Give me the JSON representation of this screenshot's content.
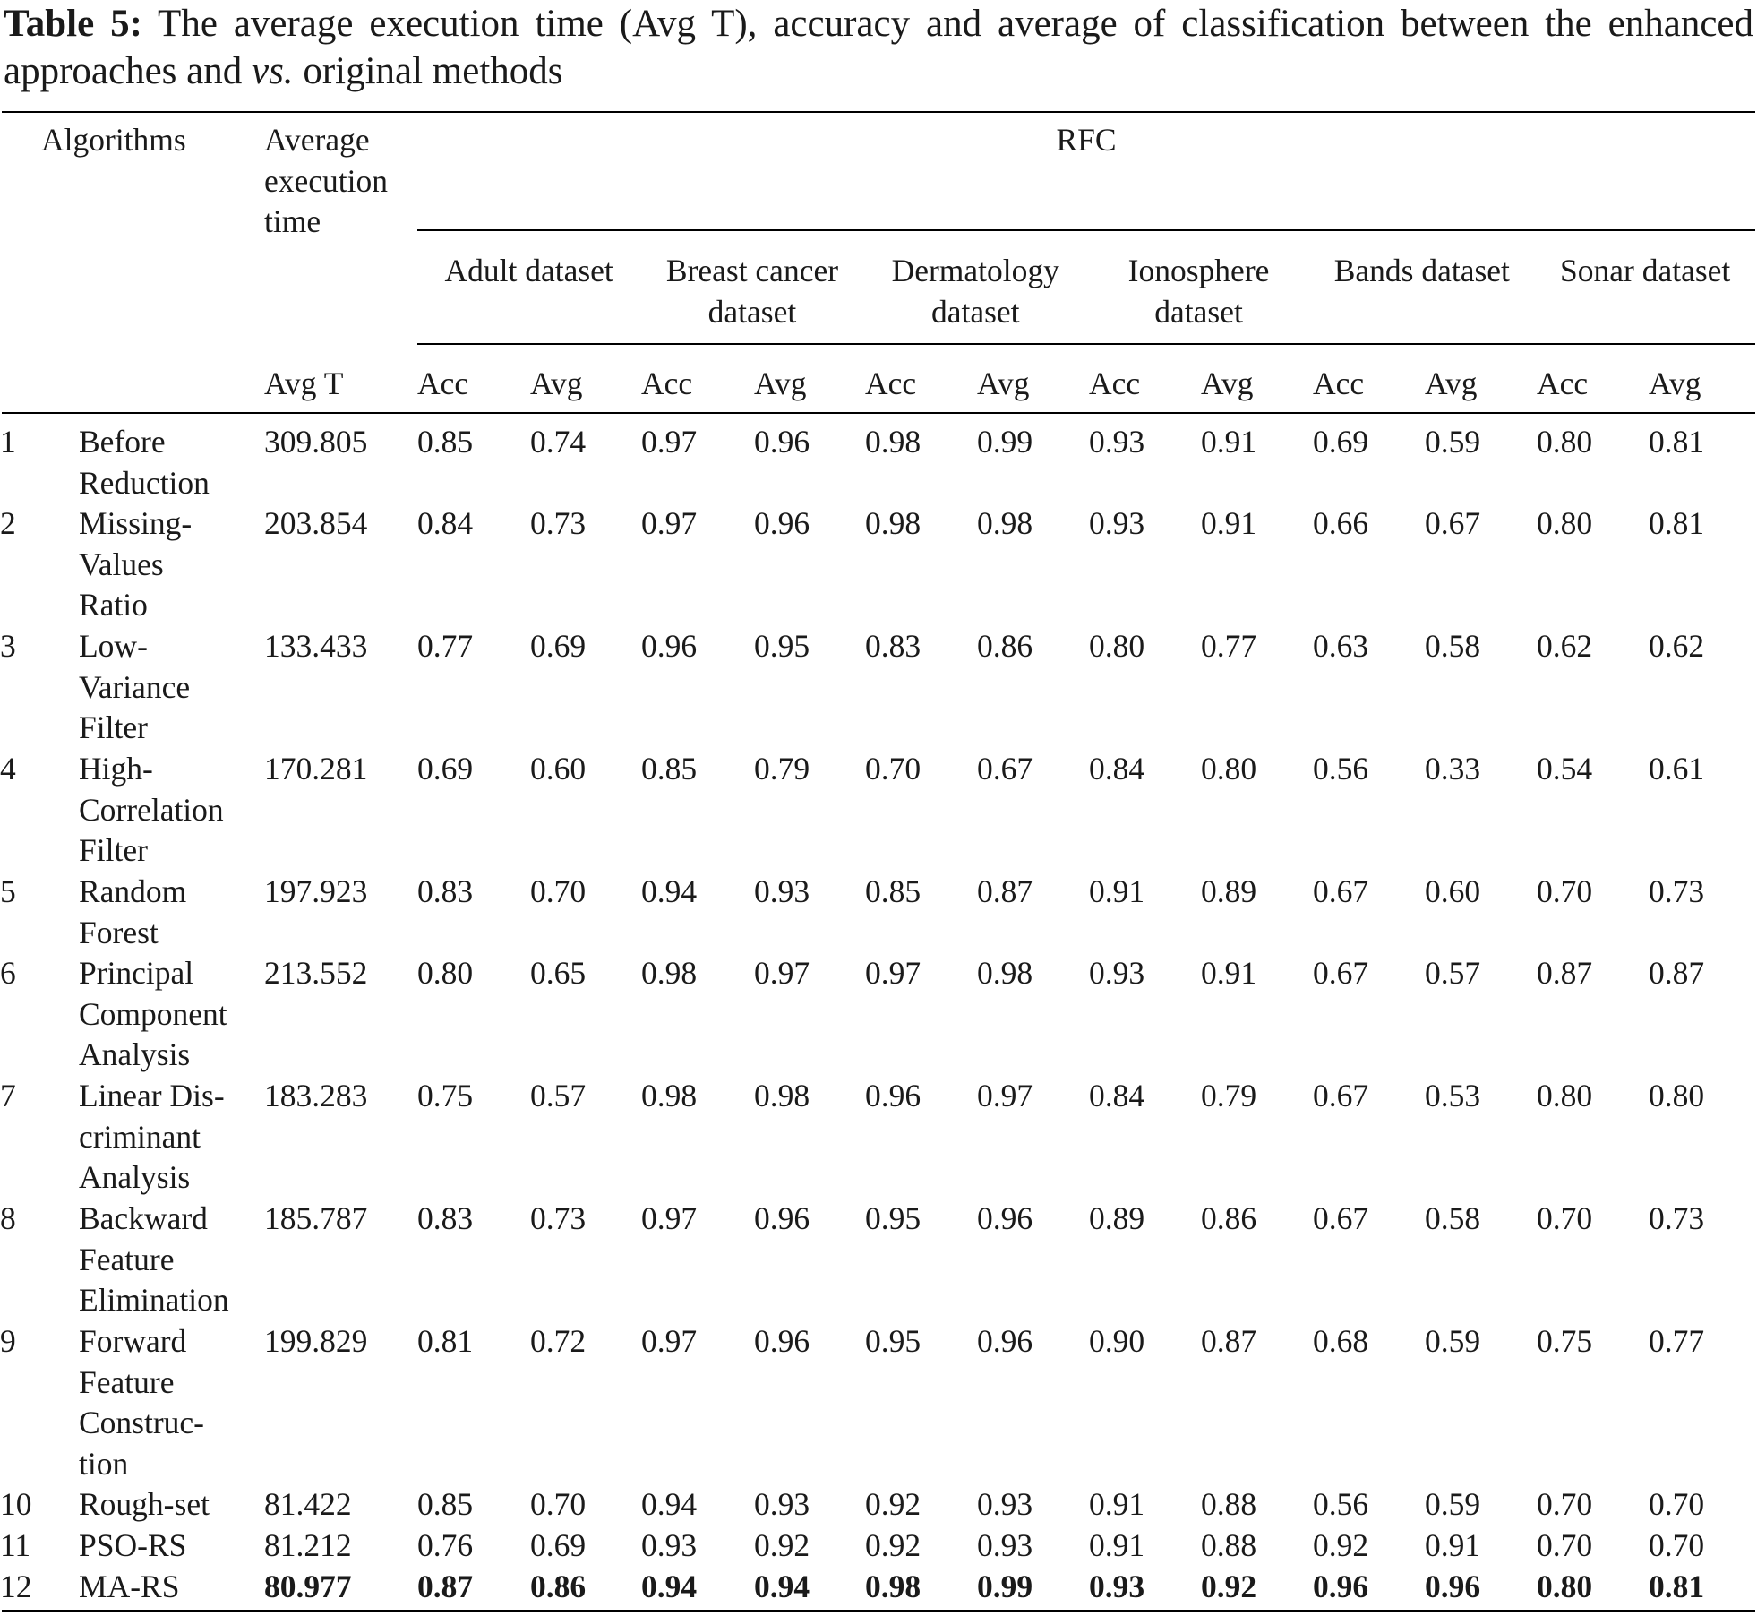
{
  "caption": {
    "label": "Table 5:",
    "text_before": " The average execution time (Avg T), accuracy and average of classification between the enhanced approaches and ",
    "italic": "vs.",
    "text_after": " original methods"
  },
  "header": {
    "algorithms": "Algorithms",
    "avg_exec_time": [
      "Average",
      "execution",
      "time"
    ],
    "rfc": "RFC",
    "datasets": [
      [
        "Adult dataset"
      ],
      [
        "Breast cancer",
        "dataset"
      ],
      [
        "Dermatology",
        "dataset"
      ],
      [
        "Ionosphere",
        "dataset"
      ],
      [
        "Bands dataset"
      ],
      [
        "Sonar dataset"
      ]
    ],
    "avg_t": "Avg T",
    "acc": "Acc",
    "avg": "Avg"
  },
  "rows": [
    {
      "num": "1",
      "name": [
        "Before",
        "Reduction"
      ],
      "time": "309.805",
      "values": [
        "0.85",
        "0.74",
        "0.97",
        "0.96",
        "0.98",
        "0.99",
        "0.93",
        "0.91",
        "0.69",
        "0.59",
        "0.80",
        "0.81"
      ],
      "bold": false
    },
    {
      "num": "2",
      "name": [
        "Missing-",
        "Values",
        "Ratio"
      ],
      "time": "203.854",
      "values": [
        "0.84",
        "0.73",
        "0.97",
        "0.96",
        "0.98",
        "0.98",
        "0.93",
        "0.91",
        "0.66",
        "0.67",
        "0.80",
        "0.81"
      ],
      "bold": false
    },
    {
      "num": "3",
      "name": [
        "Low-",
        "Variance",
        "Filter"
      ],
      "time": "133.433",
      "values": [
        "0.77",
        "0.69",
        "0.96",
        "0.95",
        "0.83",
        "0.86",
        "0.80",
        "0.77",
        "0.63",
        "0.58",
        "0.62",
        "0.62"
      ],
      "bold": false
    },
    {
      "num": "4",
      "name": [
        "High-",
        "Correlation",
        "Filter"
      ],
      "time": "170.281",
      "values": [
        "0.69",
        "0.60",
        "0.85",
        "0.79",
        "0.70",
        "0.67",
        "0.84",
        "0.80",
        "0.56",
        "0.33",
        "0.54",
        "0.61"
      ],
      "bold": false
    },
    {
      "num": "5",
      "name": [
        "Random",
        "Forest"
      ],
      "time": "197.923",
      "values": [
        "0.83",
        "0.70",
        "0.94",
        "0.93",
        "0.85",
        "0.87",
        "0.91",
        "0.89",
        "0.67",
        "0.60",
        "0.70",
        "0.73"
      ],
      "bold": false
    },
    {
      "num": "6",
      "name": [
        "Principal",
        "Component",
        "Analysis"
      ],
      "time": "213.552",
      "values": [
        "0.80",
        "0.65",
        "0.98",
        "0.97",
        "0.97",
        "0.98",
        "0.93",
        "0.91",
        "0.67",
        "0.57",
        "0.87",
        "0.87"
      ],
      "bold": false
    },
    {
      "num": "7",
      "name": [
        "Linear Dis-",
        "criminant",
        "Analysis"
      ],
      "time": "183.283",
      "values": [
        "0.75",
        "0.57",
        "0.98",
        "0.98",
        "0.96",
        "0.97",
        "0.84",
        "0.79",
        "0.67",
        "0.53",
        "0.80",
        "0.80"
      ],
      "bold": false
    },
    {
      "num": "8",
      "name": [
        "Backward",
        "Feature",
        "Elimination"
      ],
      "time": "185.787",
      "values": [
        "0.83",
        "0.73",
        "0.97",
        "0.96",
        "0.95",
        "0.96",
        "0.89",
        "0.86",
        "0.67",
        "0.58",
        "0.70",
        "0.73"
      ],
      "bold": false
    },
    {
      "num": "9",
      "name": [
        "Forward",
        "Feature",
        "Construc-",
        "tion"
      ],
      "time": "199.829",
      "values": [
        "0.81",
        "0.72",
        "0.97",
        "0.96",
        "0.95",
        "0.96",
        "0.90",
        "0.87",
        "0.68",
        "0.59",
        "0.75",
        "0.77"
      ],
      "bold": false
    },
    {
      "num": "10",
      "name": [
        "Rough-set"
      ],
      "time": "81.422",
      "values": [
        "0.85",
        "0.70",
        "0.94",
        "0.93",
        "0.92",
        "0.93",
        "0.91",
        "0.88",
        "0.56",
        "0.59",
        "0.70",
        "0.70"
      ],
      "bold": false
    },
    {
      "num": "11",
      "name": [
        "PSO-RS"
      ],
      "time": "81.212",
      "values": [
        "0.76",
        "0.69",
        "0.93",
        "0.92",
        "0.92",
        "0.93",
        "0.91",
        "0.88",
        "0.92",
        "0.91",
        "0.70",
        "0.70"
      ],
      "bold": false
    },
    {
      "num": "12",
      "name": [
        "MA-RS"
      ],
      "time": "80.977",
      "values": [
        "0.87",
        "0.86",
        "0.94",
        "0.94",
        "0.98",
        "0.99",
        "0.93",
        "0.92",
        "0.96",
        "0.96",
        "0.80",
        "0.81"
      ],
      "bold": true
    }
  ]
}
